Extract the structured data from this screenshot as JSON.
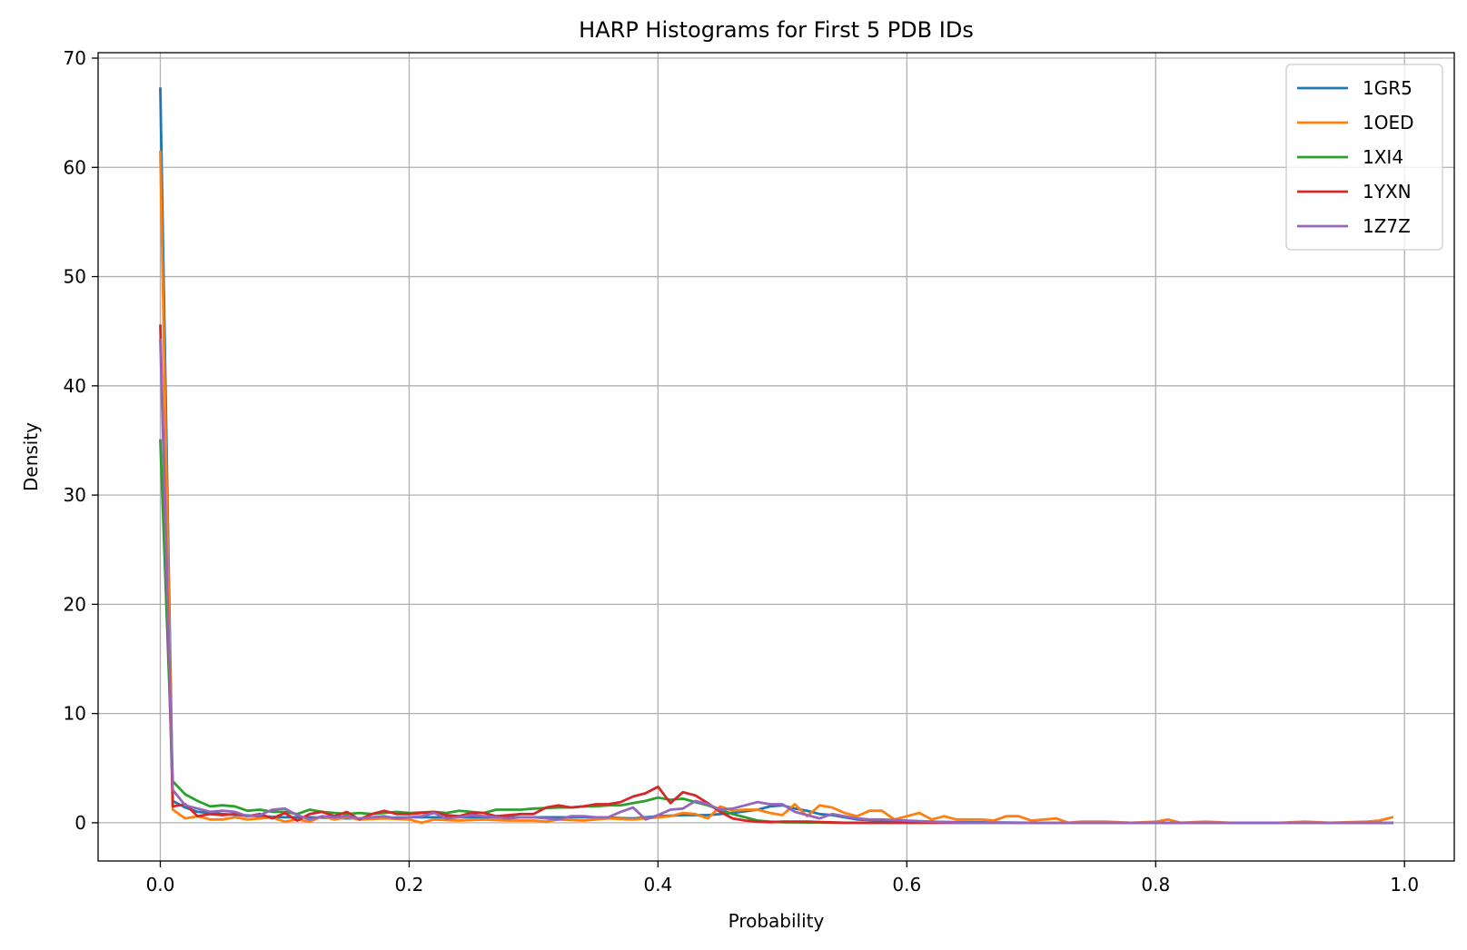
{
  "chart_data": {
    "type": "line",
    "title": "HARP Histograms for First 5 PDB IDs",
    "xlabel": "Probability",
    "ylabel": "Density",
    "xlim": [
      -0.05,
      1.04
    ],
    "ylim": [
      -3.5,
      70.5
    ],
    "xticks": [
      0.0,
      0.2,
      0.4,
      0.6,
      0.8,
      1.0
    ],
    "xtick_labels": [
      "0.0",
      "0.2",
      "0.4",
      "0.6",
      "0.8",
      "1.0"
    ],
    "yticks": [
      0,
      10,
      20,
      30,
      40,
      50,
      60,
      70
    ],
    "ytick_labels": [
      "0",
      "10",
      "20",
      "30",
      "40",
      "50",
      "60",
      "70"
    ],
    "grid": true,
    "legend_position": "top-right",
    "series": [
      {
        "name": "1GR5",
        "color": "#1f77b4",
        "points": [
          [
            0.0,
            67.2
          ],
          [
            0.01,
            2.0
          ],
          [
            0.02,
            1.4
          ],
          [
            0.03,
            1.0
          ],
          [
            0.05,
            0.8
          ],
          [
            0.08,
            0.6
          ],
          [
            0.1,
            0.5
          ],
          [
            0.12,
            0.5
          ],
          [
            0.15,
            0.4
          ],
          [
            0.2,
            0.5
          ],
          [
            0.25,
            0.5
          ],
          [
            0.3,
            0.5
          ],
          [
            0.35,
            0.5
          ],
          [
            0.38,
            0.4
          ],
          [
            0.4,
            0.6
          ],
          [
            0.42,
            0.7
          ],
          [
            0.44,
            0.7
          ],
          [
            0.46,
            0.9
          ],
          [
            0.48,
            1.2
          ],
          [
            0.49,
            1.5
          ],
          [
            0.5,
            1.6
          ],
          [
            0.51,
            1.3
          ],
          [
            0.52,
            1.1
          ],
          [
            0.53,
            0.8
          ],
          [
            0.54,
            0.7
          ],
          [
            0.55,
            0.5
          ],
          [
            0.56,
            0.3
          ],
          [
            0.58,
            0.2
          ],
          [
            0.6,
            0.1
          ],
          [
            0.65,
            0.05
          ],
          [
            0.7,
            0.0
          ],
          [
            0.8,
            0.0
          ],
          [
            0.9,
            0.0
          ],
          [
            0.99,
            0.0
          ]
        ]
      },
      {
        "name": "1OED",
        "color": "#ff7f0e",
        "points": [
          [
            0.0,
            61.4
          ],
          [
            0.01,
            1.2
          ],
          [
            0.02,
            0.4
          ],
          [
            0.03,
            0.6
          ],
          [
            0.04,
            0.3
          ],
          [
            0.05,
            0.3
          ],
          [
            0.06,
            0.5
          ],
          [
            0.07,
            0.3
          ],
          [
            0.08,
            0.4
          ],
          [
            0.09,
            0.5
          ],
          [
            0.1,
            0.1
          ],
          [
            0.11,
            0.3
          ],
          [
            0.12,
            0.1
          ],
          [
            0.13,
            0.6
          ],
          [
            0.14,
            0.3
          ],
          [
            0.15,
            0.5
          ],
          [
            0.16,
            0.3
          ],
          [
            0.18,
            0.4
          ],
          [
            0.2,
            0.3
          ],
          [
            0.21,
            0.0
          ],
          [
            0.22,
            0.3
          ],
          [
            0.24,
            0.2
          ],
          [
            0.26,
            0.3
          ],
          [
            0.28,
            0.2
          ],
          [
            0.3,
            0.2
          ],
          [
            0.31,
            0.1
          ],
          [
            0.32,
            0.3
          ],
          [
            0.34,
            0.2
          ],
          [
            0.36,
            0.4
          ],
          [
            0.38,
            0.3
          ],
          [
            0.4,
            0.5
          ],
          [
            0.41,
            0.6
          ],
          [
            0.42,
            0.9
          ],
          [
            0.43,
            0.8
          ],
          [
            0.44,
            0.4
          ],
          [
            0.45,
            1.5
          ],
          [
            0.46,
            1.1
          ],
          [
            0.47,
            1.2
          ],
          [
            0.48,
            1.2
          ],
          [
            0.49,
            0.9
          ],
          [
            0.5,
            0.7
          ],
          [
            0.51,
            1.7
          ],
          [
            0.52,
            0.6
          ],
          [
            0.53,
            1.6
          ],
          [
            0.54,
            1.4
          ],
          [
            0.55,
            0.9
          ],
          [
            0.56,
            0.6
          ],
          [
            0.57,
            1.1
          ],
          [
            0.58,
            1.1
          ],
          [
            0.59,
            0.3
          ],
          [
            0.6,
            0.6
          ],
          [
            0.61,
            0.9
          ],
          [
            0.62,
            0.3
          ],
          [
            0.63,
            0.6
          ],
          [
            0.64,
            0.3
          ],
          [
            0.66,
            0.3
          ],
          [
            0.67,
            0.2
          ],
          [
            0.68,
            0.6
          ],
          [
            0.69,
            0.6
          ],
          [
            0.7,
            0.2
          ],
          [
            0.72,
            0.4
          ],
          [
            0.73,
            0.0
          ],
          [
            0.74,
            0.1
          ],
          [
            0.76,
            0.1
          ],
          [
            0.78,
            0.0
          ],
          [
            0.8,
            0.1
          ],
          [
            0.81,
            0.3
          ],
          [
            0.82,
            0.0
          ],
          [
            0.84,
            0.1
          ],
          [
            0.86,
            0.0
          ],
          [
            0.9,
            0.0
          ],
          [
            0.92,
            0.1
          ],
          [
            0.94,
            0.0
          ],
          [
            0.97,
            0.1
          ],
          [
            0.98,
            0.2
          ],
          [
            0.99,
            0.5
          ]
        ]
      },
      {
        "name": "1XI4",
        "color": "#2ca02c",
        "points": [
          [
            0.0,
            35.0
          ],
          [
            0.01,
            3.8
          ],
          [
            0.02,
            2.6
          ],
          [
            0.03,
            2.0
          ],
          [
            0.04,
            1.5
          ],
          [
            0.05,
            1.6
          ],
          [
            0.06,
            1.5
          ],
          [
            0.07,
            1.1
          ],
          [
            0.08,
            1.2
          ],
          [
            0.09,
            1.0
          ],
          [
            0.1,
            1.0
          ],
          [
            0.11,
            0.8
          ],
          [
            0.12,
            1.2
          ],
          [
            0.13,
            1.0
          ],
          [
            0.14,
            0.9
          ],
          [
            0.15,
            0.8
          ],
          [
            0.16,
            0.9
          ],
          [
            0.17,
            0.8
          ],
          [
            0.18,
            0.9
          ],
          [
            0.19,
            1.0
          ],
          [
            0.2,
            0.9
          ],
          [
            0.22,
            1.0
          ],
          [
            0.23,
            0.9
          ],
          [
            0.24,
            1.1
          ],
          [
            0.25,
            1.0
          ],
          [
            0.26,
            0.9
          ],
          [
            0.27,
            1.2
          ],
          [
            0.28,
            1.2
          ],
          [
            0.29,
            1.2
          ],
          [
            0.3,
            1.3
          ],
          [
            0.32,
            1.4
          ],
          [
            0.33,
            1.4
          ],
          [
            0.34,
            1.5
          ],
          [
            0.35,
            1.5
          ],
          [
            0.36,
            1.6
          ],
          [
            0.37,
            1.6
          ],
          [
            0.38,
            1.8
          ],
          [
            0.39,
            2.0
          ],
          [
            0.4,
            2.3
          ],
          [
            0.41,
            2.1
          ],
          [
            0.42,
            2.2
          ],
          [
            0.43,
            1.9
          ],
          [
            0.44,
            1.6
          ],
          [
            0.45,
            1.2
          ],
          [
            0.46,
            0.8
          ],
          [
            0.47,
            0.5
          ],
          [
            0.48,
            0.2
          ],
          [
            0.49,
            0.1
          ],
          [
            0.5,
            0.05
          ],
          [
            0.55,
            0.0
          ],
          [
            0.6,
            0.0
          ],
          [
            0.7,
            0.0
          ],
          [
            0.8,
            0.0
          ],
          [
            0.9,
            0.0
          ],
          [
            0.99,
            0.0
          ]
        ]
      },
      {
        "name": "1YXN",
        "color": "#d62728",
        "points": [
          [
            0.0,
            45.5
          ],
          [
            0.01,
            1.5
          ],
          [
            0.02,
            1.7
          ],
          [
            0.03,
            0.6
          ],
          [
            0.04,
            0.8
          ],
          [
            0.05,
            0.7
          ],
          [
            0.06,
            0.8
          ],
          [
            0.07,
            0.6
          ],
          [
            0.08,
            0.8
          ],
          [
            0.09,
            0.4
          ],
          [
            0.1,
            0.9
          ],
          [
            0.11,
            0.2
          ],
          [
            0.12,
            0.8
          ],
          [
            0.13,
            1.0
          ],
          [
            0.14,
            0.6
          ],
          [
            0.15,
            1.0
          ],
          [
            0.16,
            0.3
          ],
          [
            0.17,
            0.8
          ],
          [
            0.18,
            1.1
          ],
          [
            0.19,
            0.8
          ],
          [
            0.2,
            0.8
          ],
          [
            0.21,
            0.9
          ],
          [
            0.22,
            1.0
          ],
          [
            0.23,
            0.7
          ],
          [
            0.24,
            0.6
          ],
          [
            0.25,
            0.9
          ],
          [
            0.26,
            0.9
          ],
          [
            0.27,
            0.6
          ],
          [
            0.28,
            0.7
          ],
          [
            0.29,
            0.8
          ],
          [
            0.3,
            0.8
          ],
          [
            0.31,
            1.4
          ],
          [
            0.32,
            1.6
          ],
          [
            0.33,
            1.4
          ],
          [
            0.34,
            1.5
          ],
          [
            0.35,
            1.7
          ],
          [
            0.36,
            1.7
          ],
          [
            0.37,
            1.9
          ],
          [
            0.38,
            2.4
          ],
          [
            0.39,
            2.7
          ],
          [
            0.4,
            3.3
          ],
          [
            0.41,
            1.8
          ],
          [
            0.42,
            2.8
          ],
          [
            0.43,
            2.5
          ],
          [
            0.44,
            1.8
          ],
          [
            0.45,
            1.0
          ],
          [
            0.46,
            0.4
          ],
          [
            0.47,
            0.2
          ],
          [
            0.48,
            0.1
          ],
          [
            0.49,
            0.05
          ],
          [
            0.5,
            0.1
          ],
          [
            0.52,
            0.1
          ],
          [
            0.55,
            0.0
          ],
          [
            0.6,
            0.0
          ],
          [
            0.7,
            0.0
          ],
          [
            0.8,
            0.0
          ],
          [
            0.9,
            0.0
          ],
          [
            0.99,
            0.0
          ]
        ]
      },
      {
        "name": "1Z7Z",
        "color": "#9467bd",
        "points": [
          [
            0.0,
            44.2
          ],
          [
            0.01,
            3.0
          ],
          [
            0.02,
            1.6
          ],
          [
            0.03,
            1.3
          ],
          [
            0.04,
            1.0
          ],
          [
            0.05,
            1.1
          ],
          [
            0.06,
            1.0
          ],
          [
            0.07,
            0.6
          ],
          [
            0.08,
            0.7
          ],
          [
            0.09,
            1.2
          ],
          [
            0.1,
            1.3
          ],
          [
            0.11,
            0.7
          ],
          [
            0.12,
            0.3
          ],
          [
            0.13,
            0.6
          ],
          [
            0.14,
            0.5
          ],
          [
            0.15,
            0.6
          ],
          [
            0.16,
            0.4
          ],
          [
            0.17,
            0.5
          ],
          [
            0.18,
            0.6
          ],
          [
            0.19,
            0.4
          ],
          [
            0.2,
            0.5
          ],
          [
            0.21,
            0.6
          ],
          [
            0.22,
            0.9
          ],
          [
            0.23,
            0.4
          ],
          [
            0.24,
            0.5
          ],
          [
            0.25,
            0.7
          ],
          [
            0.26,
            0.6
          ],
          [
            0.27,
            0.5
          ],
          [
            0.28,
            0.4
          ],
          [
            0.29,
            0.5
          ],
          [
            0.3,
            0.5
          ],
          [
            0.31,
            0.4
          ],
          [
            0.32,
            0.3
          ],
          [
            0.33,
            0.6
          ],
          [
            0.34,
            0.6
          ],
          [
            0.35,
            0.5
          ],
          [
            0.36,
            0.5
          ],
          [
            0.37,
            1.0
          ],
          [
            0.38,
            1.4
          ],
          [
            0.39,
            0.3
          ],
          [
            0.4,
            0.7
          ],
          [
            0.41,
            1.2
          ],
          [
            0.42,
            1.3
          ],
          [
            0.43,
            2.0
          ],
          [
            0.44,
            1.7
          ],
          [
            0.45,
            1.2
          ],
          [
            0.46,
            1.3
          ],
          [
            0.47,
            1.6
          ],
          [
            0.48,
            1.9
          ],
          [
            0.49,
            1.7
          ],
          [
            0.5,
            1.7
          ],
          [
            0.51,
            1.0
          ],
          [
            0.52,
            0.7
          ],
          [
            0.53,
            0.4
          ],
          [
            0.54,
            0.8
          ],
          [
            0.55,
            0.6
          ],
          [
            0.56,
            0.4
          ],
          [
            0.57,
            0.3
          ],
          [
            0.58,
            0.3
          ],
          [
            0.6,
            0.2
          ],
          [
            0.62,
            0.1
          ],
          [
            0.65,
            0.0
          ],
          [
            0.7,
            0.0
          ],
          [
            0.8,
            0.0
          ],
          [
            0.9,
            0.0
          ],
          [
            0.99,
            0.0
          ]
        ]
      }
    ]
  }
}
